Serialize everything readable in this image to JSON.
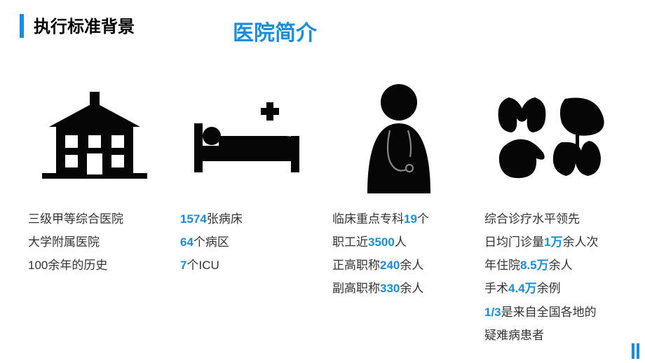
{
  "colors": {
    "accent": "#1a8ed6",
    "icon": "#060606",
    "text": "#333333",
    "black": "#000000"
  },
  "header": {
    "section_title": "执行标准背景",
    "subtitle": "医院简介"
  },
  "cards": [
    {
      "icon": "building",
      "lines": [
        {
          "parts": [
            {
              "t": "三级甲等综合医院",
              "hl": false
            }
          ]
        },
        {
          "parts": [
            {
              "t": "大学附属医院",
              "hl": false
            }
          ]
        },
        {
          "parts": [
            {
              "t": "100余年的历史",
              "hl": false
            }
          ]
        }
      ]
    },
    {
      "icon": "bed",
      "lines": [
        {
          "parts": [
            {
              "t": "1574",
              "hl": true
            },
            {
              "t": "张病床",
              "hl": false
            }
          ]
        },
        {
          "parts": [
            {
              "t": "64",
              "hl": true
            },
            {
              "t": "个病区",
              "hl": false
            }
          ]
        },
        {
          "parts": [
            {
              "t": "7",
              "hl": true
            },
            {
              "t": "个ICU",
              "hl": false
            }
          ]
        }
      ]
    },
    {
      "icon": "doctor",
      "lines": [
        {
          "parts": [
            {
              "t": "临床重点专科",
              "hl": false
            },
            {
              "t": "19",
              "hl": true
            },
            {
              "t": "个",
              "hl": false
            }
          ]
        },
        {
          "parts": [
            {
              "t": "职工近",
              "hl": false
            },
            {
              "t": "3500",
              "hl": true
            },
            {
              "t": "人",
              "hl": false
            }
          ]
        },
        {
          "parts": [
            {
              "t": "正高职称",
              "hl": false
            },
            {
              "t": "240",
              "hl": true
            },
            {
              "t": "余人",
              "hl": false
            }
          ]
        },
        {
          "parts": [
            {
              "t": "副高职称",
              "hl": false
            },
            {
              "t": "330",
              "hl": true
            },
            {
              "t": "余人",
              "hl": false
            }
          ]
        }
      ]
    },
    {
      "icon": "organs",
      "lines": [
        {
          "parts": [
            {
              "t": "综合诊疗水平领先",
              "hl": false
            }
          ]
        },
        {
          "parts": [
            {
              "t": "日均门诊量",
              "hl": false
            },
            {
              "t": "1万",
              "hl": true
            },
            {
              "t": "余人次",
              "hl": false
            }
          ]
        },
        {
          "parts": [
            {
              "t": "年住院",
              "hl": false
            },
            {
              "t": "8.5万",
              "hl": true
            },
            {
              "t": "余人",
              "hl": false
            }
          ]
        },
        {
          "parts": [
            {
              "t": "手术",
              "hl": false
            },
            {
              "t": "4.4万",
              "hl": true
            },
            {
              "t": "余例",
              "hl": false
            }
          ]
        },
        {
          "parts": [
            {
              "t": "1/3",
              "hl": true
            },
            {
              "t": "是来自全国各地的",
              "hl": false
            }
          ]
        },
        {
          "parts": [
            {
              "t": "疑难病患者",
              "hl": false
            }
          ]
        }
      ]
    }
  ]
}
